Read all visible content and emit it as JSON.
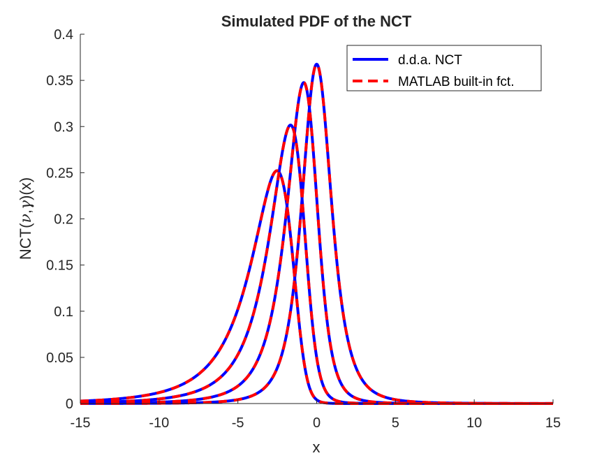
{
  "chart_data": {
    "type": "line",
    "title": "Simulated PDF of the NCT",
    "xlabel": "x",
    "ylabel_parts": [
      "NCT(",
      "ν",
      ",",
      "γ",
      ")(x)"
    ],
    "xlim": [
      -15,
      15
    ],
    "ylim": [
      0,
      0.4
    ],
    "xticks": [
      -15,
      -10,
      -5,
      0,
      5,
      10,
      15
    ],
    "xtick_labels": [
      "-15",
      "-10",
      "-5",
      "0",
      "5",
      "10",
      "15"
    ],
    "yticks": [
      0,
      0.05,
      0.1,
      0.15,
      0.2,
      0.25,
      0.3,
      0.35,
      0.4
    ],
    "ytick_labels": [
      "0",
      "0.05",
      "0.1",
      "0.15",
      "0.2",
      "0.25",
      "0.3",
      "0.35",
      "0.4"
    ],
    "grid": false,
    "legend_position": "top-right",
    "legend": [
      {
        "label": "d.d.a. NCT",
        "color": "#0000ff",
        "style": "solid"
      },
      {
        "label": "MATLAB built-in fct.",
        "color": "#ff0000",
        "style": "dashed"
      }
    ],
    "curves": [
      {
        "nu": 3,
        "gamma": 0
      },
      {
        "nu": 3,
        "gamma": -1
      },
      {
        "nu": 3,
        "gamma": -2
      },
      {
        "nu": 3,
        "gamma": -3
      }
    ],
    "colors": {
      "dda": "#0000ff",
      "matlab": "#ff0000"
    }
  }
}
